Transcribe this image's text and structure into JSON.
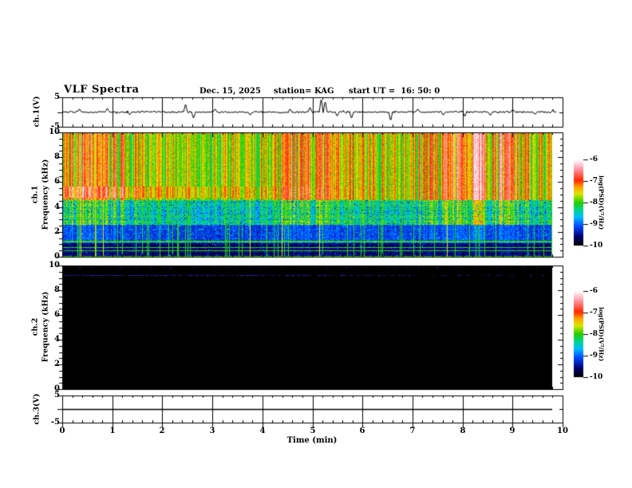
{
  "header": {
    "title": "VLF Spectra",
    "date": "Dec. 15, 2025",
    "station": "station= KAG",
    "start_ut": "start UT =  16: 50: 0"
  },
  "time_axis": {
    "label": "Time (min)",
    "ticks": [
      "0",
      "1",
      "2",
      "3",
      "4",
      "5",
      "6",
      "7",
      "8",
      "9",
      "10"
    ],
    "range_min": [
      0,
      10
    ],
    "minor_tick_step_min": 0.2,
    "data_end_min": 9.8
  },
  "panels": {
    "ch1_voltage": {
      "ylabel": "ch.1(V)",
      "yticks": [
        "5",
        "-5"
      ],
      "ytick_values": [
        5,
        -5
      ],
      "yrange_v": [
        -5,
        5
      ]
    },
    "ch1_spectrogram": {
      "ylabel_channel": "ch.1",
      "ylabel_axis": "Frequency (kHz)",
      "yticks": [
        "10",
        "8",
        "6",
        "4",
        "2",
        "0"
      ],
      "ytick_values": [
        10,
        8,
        6,
        4,
        2,
        0
      ],
      "yrange_khz": [
        0,
        10
      ]
    },
    "ch2_spectrogram": {
      "ylabel_channel": "ch.2",
      "ylabel_axis": "Frequency (kHz)",
      "yticks": [
        "10",
        "8",
        "6",
        "4",
        "2",
        "0"
      ],
      "ytick_values": [
        10,
        8,
        6,
        4,
        2,
        0
      ],
      "yrange_khz": [
        0,
        10
      ]
    },
    "ch3_voltage": {
      "ylabel": "ch.3(V)",
      "yticks": [
        "5",
        "-5"
      ],
      "ytick_values": [
        5,
        -5
      ],
      "yrange_v": [
        -5,
        5
      ]
    }
  },
  "colorbars": {
    "label": "log(PSD)(V²/Hz)",
    "ticks": [
      "-6",
      "-7",
      "-8",
      "-9",
      "-10"
    ],
    "tick_values": [
      -6,
      -7,
      -8,
      -9,
      -10
    ],
    "colormap_stops": [
      [
        "#000000",
        0.0
      ],
      [
        "#00006e",
        0.1
      ],
      [
        "#0046ff",
        0.22
      ],
      [
        "#00beff",
        0.33
      ],
      [
        "#00d782",
        0.42
      ],
      [
        "#28cd00",
        0.5
      ],
      [
        "#dce600",
        0.6
      ],
      [
        "#ffa500",
        0.68
      ],
      [
        "#ff2800",
        0.76
      ],
      [
        "#ff9eaf",
        0.9
      ],
      [
        "#ffffff",
        1.0
      ]
    ]
  },
  "chart_data": [
    {
      "panel": "ch.1 voltage waveform",
      "type": "line",
      "xrange_min": [
        0,
        10
      ],
      "yrange_v": [
        -5,
        5
      ],
      "baseline_v": 0,
      "noise_amplitude_v": 0.35,
      "trace_end_min": 9.87,
      "spikes": [
        {
          "t_min": 0.35,
          "v": 0.9
        },
        {
          "t_min": 0.9,
          "v": 1.1
        },
        {
          "t_min": 1.35,
          "v": -0.8
        },
        {
          "t_min": 2.47,
          "v": 2.4
        },
        {
          "t_min": 2.62,
          "v": -1.9
        },
        {
          "t_min": 3.05,
          "v": 0.9
        },
        {
          "t_min": 3.75,
          "v": -0.9
        },
        {
          "t_min": 4.55,
          "v": 0.9
        },
        {
          "t_min": 4.95,
          "v": 1.4
        },
        {
          "t_min": 5.17,
          "v": 4.0
        },
        {
          "t_min": 5.25,
          "v": 3.2
        },
        {
          "t_min": 5.5,
          "v": -1.2
        },
        {
          "t_min": 5.78,
          "v": -1.9
        },
        {
          "t_min": 6.57,
          "v": -2.6
        },
        {
          "t_min": 7.1,
          "v": 0.9
        },
        {
          "t_min": 7.62,
          "v": -0.9
        },
        {
          "t_min": 8.05,
          "v": -1.3
        },
        {
          "t_min": 8.55,
          "v": -1.0
        },
        {
          "t_min": 9.0,
          "v": 0.8
        },
        {
          "t_min": 9.45,
          "v": -0.7
        }
      ]
    },
    {
      "panel": "ch.1 spectrogram",
      "type": "heatmap",
      "xrange_min": [
        0,
        9.8
      ],
      "yrange_khz": [
        0,
        10
      ],
      "scale_log_psd": [
        -10,
        -6
      ],
      "bands": [
        {
          "freq_khz": [
            4.6,
            10
          ],
          "log_psd": [
            -8,
            -6
          ],
          "texture": "dense red/white vertical sferic streaks on yellow-green background"
        },
        {
          "freq_khz": [
            2.6,
            4.6
          ],
          "log_psd": [
            -9,
            -7
          ],
          "texture": "mottled green/cyan, weaker streaks, blue gaps"
        },
        {
          "freq_khz": [
            1.15,
            2.6
          ],
          "log_psd": [
            -9.8,
            -8.5
          ],
          "texture": "dark blue speckle with horizontal banding"
        },
        {
          "freq_khz": [
            0,
            1.15
          ],
          "log_psd": [
            -10,
            -9.5
          ],
          "texture": "near-black with sparse blue speckle"
        }
      ],
      "pink_band_khz": [
        4.8,
        5.7
      ],
      "horizontal_green_lines_khz": [
        1.24,
        0.77,
        0.5,
        0.05
      ],
      "vertical_green_streaks_per_min": 6,
      "vertical_orange_streaks_per_min": 0.8
    },
    {
      "panel": "ch.2 spectrogram",
      "type": "heatmap",
      "xrange_min": [
        0,
        9.8
      ],
      "yrange_khz": [
        0,
        10
      ],
      "scale_log_psd": [
        -10,
        -6
      ],
      "texture": "no signal: uniformly at/below -10 (black)",
      "dotted_blue_line_khz": 9.25,
      "dotted_blue_line_fade": "strong near 0 min, fading toward 10 min"
    },
    {
      "panel": "ch.3 voltage waveform",
      "type": "line",
      "yrange_v": [
        -5,
        5
      ],
      "value_v": 0,
      "extent_min": [
        0,
        9.8
      ]
    }
  ]
}
